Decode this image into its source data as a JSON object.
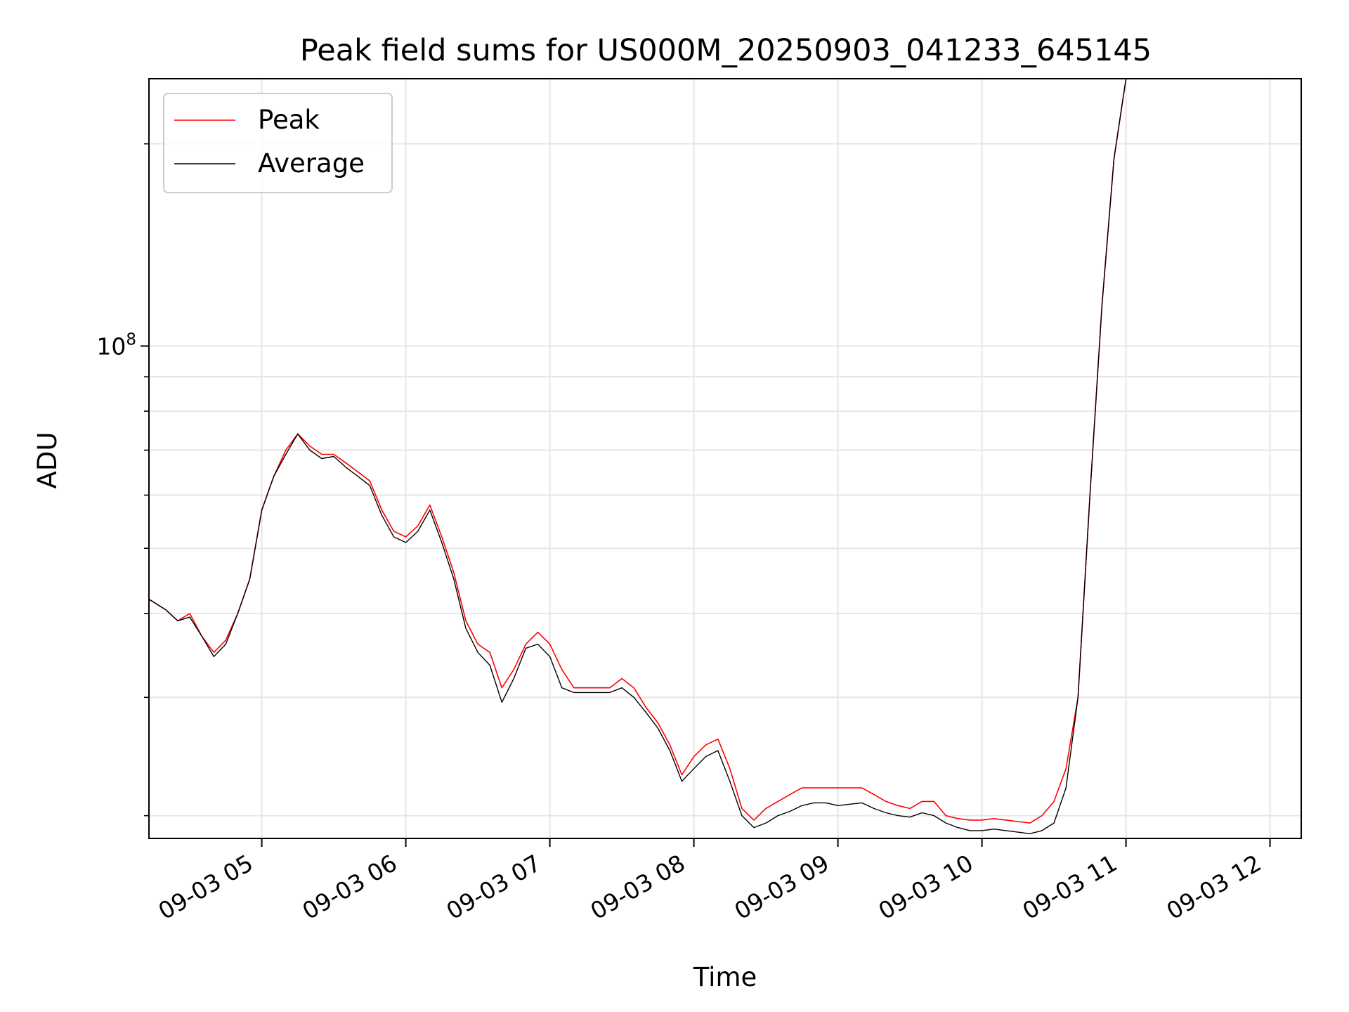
{
  "chart_data": {
    "type": "line",
    "title": "Peak field sums for US000M_20250903_041233_645145",
    "xlabel": "Time",
    "ylabel": "ADU",
    "yscale": "log",
    "xlim": [
      "09-03 04:13",
      "09-03 12:13"
    ],
    "ylim": [
      18500000,
      250000000
    ],
    "grid": true,
    "legend_position": "top-left",
    "x_tick_labels": [
      "09-03 05",
      "09-03 06",
      "09-03 07",
      "09-03 08",
      "09-03 09",
      "09-03 10",
      "09-03 11",
      "09-03 12"
    ],
    "y_tick_labels": [
      {
        "base": "10",
        "exponent": "8"
      }
    ],
    "series": [
      {
        "name": "Peak",
        "color": "#ff0000",
        "x": [
          "09-03 04:13",
          "09-03 04:20",
          "09-03 04:25",
          "09-03 04:30",
          "09-03 04:35",
          "09-03 04:40",
          "09-03 04:45",
          "09-03 04:50",
          "09-03 04:55",
          "09-03 05:00",
          "09-03 05:05",
          "09-03 05:10",
          "09-03 05:15",
          "09-03 05:20",
          "09-03 05:25",
          "09-03 05:30",
          "09-03 05:35",
          "09-03 05:40",
          "09-03 05:45",
          "09-03 05:50",
          "09-03 05:55",
          "09-03 06:00",
          "09-03 06:05",
          "09-03 06:10",
          "09-03 06:15",
          "09-03 06:20",
          "09-03 06:25",
          "09-03 06:30",
          "09-03 06:35",
          "09-03 06:40",
          "09-03 06:45",
          "09-03 06:50",
          "09-03 06:55",
          "09-03 07:00",
          "09-03 07:05",
          "09-03 07:10",
          "09-03 07:15",
          "09-03 07:20",
          "09-03 07:25",
          "09-03 07:30",
          "09-03 07:35",
          "09-03 07:40",
          "09-03 07:45",
          "09-03 07:50",
          "09-03 07:55",
          "09-03 08:00",
          "09-03 08:05",
          "09-03 08:10",
          "09-03 08:15",
          "09-03 08:20",
          "09-03 08:25",
          "09-03 08:30",
          "09-03 08:35",
          "09-03 08:40",
          "09-03 08:45",
          "09-03 08:50",
          "09-03 08:55",
          "09-03 09:00",
          "09-03 09:05",
          "09-03 09:10",
          "09-03 09:15",
          "09-03 09:20",
          "09-03 09:25",
          "09-03 09:30",
          "09-03 09:35",
          "09-03 09:40",
          "09-03 09:45",
          "09-03 09:50",
          "09-03 09:55",
          "09-03 10:00",
          "09-03 10:05",
          "09-03 10:10",
          "09-03 10:15",
          "09-03 10:20",
          "09-03 10:25",
          "09-03 10:30",
          "09-03 10:35",
          "09-03 10:40",
          "09-03 10:45",
          "09-03 10:50",
          "09-03 10:55",
          "09-03 11:00",
          "09-03 11:05",
          "09-03 11:10",
          "09-03 11:15",
          "09-03 11:20",
          "09-03 11:25",
          "09-03 11:30",
          "09-03 11:35",
          "09-03 11:40",
          "09-03 11:45",
          "09-03 11:50",
          "09-03 11:55",
          "09-03 12:00"
        ],
        "values": [
          42000000,
          40500000,
          39000000,
          40000000,
          37000000,
          35000000,
          36500000,
          40000000,
          45000000,
          57000000,
          64000000,
          70000000,
          74000000,
          71000000,
          69000000,
          69000000,
          67000000,
          65000000,
          63000000,
          57000000,
          53000000,
          52000000,
          54000000,
          58000000,
          52000000,
          46000000,
          39000000,
          36000000,
          35000000,
          31000000,
          33000000,
          36000000,
          37500000,
          36000000,
          33000000,
          31000000,
          31000000,
          31000000,
          31000000,
          32000000,
          31000000,
          29000000,
          27500000,
          25500000,
          23000000,
          24500000,
          25500000,
          26000000,
          23500000,
          20500000,
          19700000,
          20500000,
          21000000,
          21500000,
          22000000,
          22000000,
          22000000,
          22000000,
          22000000,
          22000000,
          21500000,
          21000000,
          20700000,
          20500000,
          21000000,
          21000000,
          20000000,
          19800000,
          19700000,
          19700000,
          19800000,
          19700000,
          19600000,
          19500000,
          20000000,
          21000000,
          23500000,
          30000000,
          60000000,
          115000000,
          190000000,
          250000000,
          250000000,
          250000000,
          250000000,
          250000000,
          250000000,
          250000000,
          250000000,
          250000000,
          250000000,
          250000000,
          250000000,
          250000000
        ]
      },
      {
        "name": "Average",
        "color": "#000000",
        "x": [
          "09-03 04:13",
          "09-03 04:20",
          "09-03 04:25",
          "09-03 04:30",
          "09-03 04:35",
          "09-03 04:40",
          "09-03 04:45",
          "09-03 04:50",
          "09-03 04:55",
          "09-03 05:00",
          "09-03 05:05",
          "09-03 05:10",
          "09-03 05:15",
          "09-03 05:20",
          "09-03 05:25",
          "09-03 05:30",
          "09-03 05:35",
          "09-03 05:40",
          "09-03 05:45",
          "09-03 05:50",
          "09-03 05:55",
          "09-03 06:00",
          "09-03 06:05",
          "09-03 06:10",
          "09-03 06:15",
          "09-03 06:20",
          "09-03 06:25",
          "09-03 06:30",
          "09-03 06:35",
          "09-03 06:40",
          "09-03 06:45",
          "09-03 06:50",
          "09-03 06:55",
          "09-03 07:00",
          "09-03 07:05",
          "09-03 07:10",
          "09-03 07:15",
          "09-03 07:20",
          "09-03 07:25",
          "09-03 07:30",
          "09-03 07:35",
          "09-03 07:40",
          "09-03 07:45",
          "09-03 07:50",
          "09-03 07:55",
          "09-03 08:00",
          "09-03 08:05",
          "09-03 08:10",
          "09-03 08:15",
          "09-03 08:20",
          "09-03 08:25",
          "09-03 08:30",
          "09-03 08:35",
          "09-03 08:40",
          "09-03 08:45",
          "09-03 08:50",
          "09-03 08:55",
          "09-03 09:00",
          "09-03 09:05",
          "09-03 09:10",
          "09-03 09:15",
          "09-03 09:20",
          "09-03 09:25",
          "09-03 09:30",
          "09-03 09:35",
          "09-03 09:40",
          "09-03 09:45",
          "09-03 09:50",
          "09-03 09:55",
          "09-03 10:00",
          "09-03 10:05",
          "09-03 10:10",
          "09-03 10:15",
          "09-03 10:20",
          "09-03 10:25",
          "09-03 10:30",
          "09-03 10:35",
          "09-03 10:40",
          "09-03 10:45",
          "09-03 10:50",
          "09-03 10:55",
          "09-03 11:00",
          "09-03 11:05",
          "09-03 11:10",
          "09-03 11:15",
          "09-03 11:20",
          "09-03 11:25",
          "09-03 11:30",
          "09-03 11:35",
          "09-03 11:40",
          "09-03 11:45",
          "09-03 11:50",
          "09-03 11:55",
          "09-03 12:00"
        ],
        "values": [
          42000000,
          40500000,
          39000000,
          39500000,
          37000000,
          34500000,
          36000000,
          40000000,
          45000000,
          57000000,
          64000000,
          69000000,
          74000000,
          70000000,
          68000000,
          68500000,
          66000000,
          64000000,
          62000000,
          56000000,
          52000000,
          51000000,
          53000000,
          57000000,
          51000000,
          45000000,
          38000000,
          35000000,
          33500000,
          29500000,
          32000000,
          35500000,
          36000000,
          34500000,
          31000000,
          30500000,
          30500000,
          30500000,
          30500000,
          31000000,
          30000000,
          28500000,
          27000000,
          25000000,
          22500000,
          23500000,
          24500000,
          25000000,
          22500000,
          20000000,
          19200000,
          19500000,
          20000000,
          20300000,
          20700000,
          20900000,
          20900000,
          20700000,
          20800000,
          20900000,
          20500000,
          20200000,
          20000000,
          19900000,
          20200000,
          20000000,
          19500000,
          19200000,
          19000000,
          19000000,
          19100000,
          19000000,
          18900000,
          18800000,
          19000000,
          19500000,
          22000000,
          30000000,
          60000000,
          115000000,
          190000000,
          250000000,
          250000000,
          250000000,
          250000000,
          250000000,
          250000000,
          250000000,
          250000000,
          250000000,
          250000000,
          250000000,
          250000000,
          250000000
        ]
      }
    ]
  }
}
